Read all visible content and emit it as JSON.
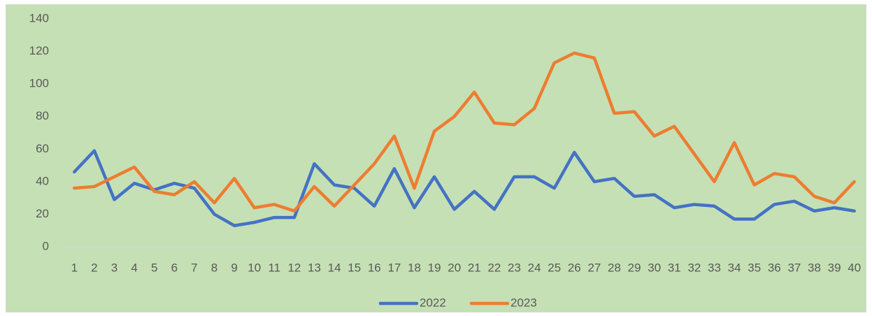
{
  "chart_data": {
    "type": "line",
    "categories": [
      1,
      2,
      3,
      4,
      5,
      6,
      7,
      8,
      9,
      10,
      11,
      12,
      13,
      14,
      15,
      16,
      17,
      18,
      19,
      20,
      21,
      22,
      23,
      24,
      25,
      26,
      27,
      28,
      29,
      30,
      31,
      32,
      33,
      34,
      35,
      36,
      37,
      38,
      39,
      40
    ],
    "series": [
      {
        "name": "2022",
        "color": "#4472c4",
        "values": [
          46,
          59,
          29,
          39,
          35,
          39,
          36,
          20,
          13,
          15,
          18,
          18,
          51,
          38,
          36,
          25,
          48,
          24,
          43,
          23,
          34,
          23,
          43,
          43,
          36,
          58,
          40,
          42,
          31,
          32,
          24,
          26,
          25,
          17,
          17,
          26,
          28,
          22,
          24,
          22
        ]
      },
      {
        "name": "2023",
        "color": "#ed7d31",
        "values": [
          36,
          37,
          43,
          49,
          34,
          32,
          40,
          27,
          42,
          24,
          26,
          22,
          37,
          25,
          38,
          51,
          68,
          36,
          71,
          80,
          95,
          76,
          75,
          85,
          113,
          119,
          116,
          82,
          83,
          68,
          74,
          57,
          40,
          64,
          38,
          45,
          43,
          31,
          27,
          40
        ]
      }
    ],
    "ylim": [
      0,
      140
    ],
    "yticks": [
      0,
      20,
      40,
      60,
      80,
      100,
      120,
      140
    ],
    "grid": false,
    "legend": "bottom",
    "background": "#c5e0b4"
  }
}
